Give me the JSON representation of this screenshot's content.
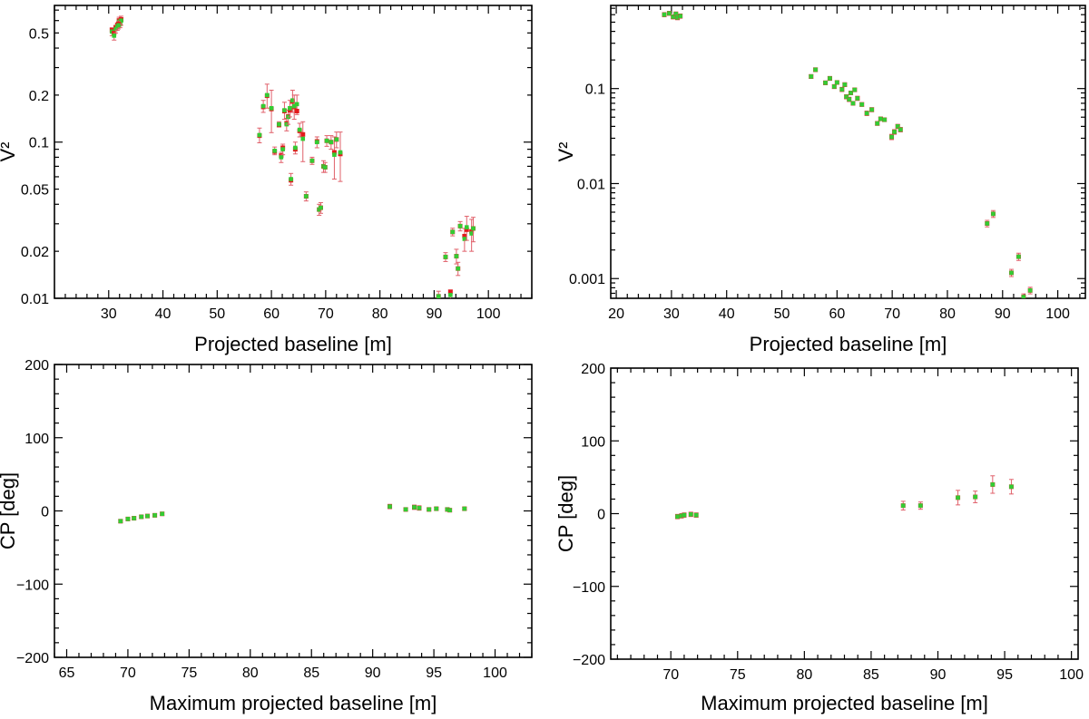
{
  "chart_data": [
    {
      "id": "p1",
      "type": "scatter",
      "xlabel": "Projected baseline [m]",
      "ylabel": "V²",
      "xscale": "linear",
      "yscale": "log",
      "xlim": [
        20,
        108
      ],
      "ylim": [
        0.01,
        0.75
      ],
      "xticks": [
        30,
        40,
        50,
        60,
        70,
        80,
        90,
        100
      ],
      "yticks": [
        0.01,
        0.02,
        0.05,
        0.1,
        0.2,
        0.5
      ],
      "yticklabels": [
        "0.01",
        "0.02",
        "0.05",
        "0.1",
        "0.2",
        "0.5"
      ],
      "points": [
        [
          30.6,
          0.51,
          0.03,
          0.52
        ],
        [
          31.0,
          0.48,
          0.03,
          0.5
        ],
        [
          31.3,
          0.53,
          0.03,
          0.54
        ],
        [
          31.6,
          0.55,
          0.03,
          0.56
        ],
        [
          31.9,
          0.59,
          0.04,
          0.6
        ],
        [
          32.1,
          0.57,
          0.03,
          0.58
        ],
        [
          32.3,
          0.6,
          0.04,
          0.61
        ],
        [
          31.8,
          0.56,
          0.03,
          0.57
        ],
        [
          57.8,
          0.111,
          0.012,
          0.11
        ],
        [
          58.5,
          0.17,
          0.015,
          0.168
        ],
        [
          59.2,
          0.2,
          0.035,
          0.198
        ],
        [
          60.0,
          0.165,
          0.05,
          0.163
        ],
        [
          60.6,
          0.088,
          0.005,
          0.087
        ],
        [
          61.4,
          0.13,
          0.005,
          0.129
        ],
        [
          61.8,
          0.08,
          0.006,
          0.082
        ],
        [
          62.1,
          0.09,
          0.007,
          0.092
        ],
        [
          62.4,
          0.16,
          0.02,
          0.158
        ],
        [
          62.8,
          0.13,
          0.012,
          0.132
        ],
        [
          63.1,
          0.145,
          0.015,
          0.146
        ],
        [
          63.4,
          0.165,
          0.02,
          0.16
        ],
        [
          63.6,
          0.058,
          0.005,
          0.057
        ],
        [
          63.9,
          0.185,
          0.03,
          0.182
        ],
        [
          64.2,
          0.17,
          0.03,
          0.168
        ],
        [
          64.4,
          0.092,
          0.008,
          0.09
        ],
        [
          64.7,
          0.175,
          0.025,
          0.158
        ],
        [
          65.2,
          0.12,
          0.012,
          0.118
        ],
        [
          65.8,
          0.105,
          0.03,
          0.112
        ],
        [
          66.4,
          0.045,
          0.003,
          0.045
        ],
        [
          67.5,
          0.076,
          0.004,
          0.076
        ],
        [
          68.4,
          0.1,
          0.008,
          0.101
        ],
        [
          68.8,
          0.037,
          0.003,
          0.037
        ],
        [
          69.1,
          0.038,
          0.003,
          0.038
        ],
        [
          69.6,
          0.07,
          0.006,
          0.07
        ],
        [
          69.9,
          0.069,
          0.005,
          0.069
        ],
        [
          70.2,
          0.102,
          0.008,
          0.102
        ],
        [
          71.0,
          0.1,
          0.01,
          0.1
        ],
        [
          71.6,
          0.083,
          0.025,
          0.086
        ],
        [
          72.0,
          0.104,
          0.012,
          0.104
        ],
        [
          72.7,
          0.086,
          0.03,
          0.084
        ],
        [
          90.8,
          0.0103,
          0.0008,
          0.0103
        ],
        [
          92.1,
          0.0184,
          0.0012,
          0.0184
        ],
        [
          93.0,
          0.0105,
          0.0008,
          0.011
        ],
        [
          93.4,
          0.0266,
          0.0015,
          0.0266
        ],
        [
          94.1,
          0.0186,
          0.002,
          0.0186
        ],
        [
          94.4,
          0.0155,
          0.0015,
          0.0155
        ],
        [
          94.8,
          0.029,
          0.002,
          0.029
        ],
        [
          95.6,
          0.024,
          0.004,
          0.025
        ],
        [
          96.0,
          0.0285,
          0.005,
          0.0275
        ],
        [
          96.9,
          0.026,
          0.006,
          0.0268
        ],
        [
          97.2,
          0.028,
          0.005,
          0.028
        ]
      ]
    },
    {
      "id": "p2",
      "type": "scatter",
      "xlabel": "Projected baseline [m]",
      "ylabel": "V²",
      "xscale": "linear",
      "yscale": "log",
      "xlim": [
        19,
        105
      ],
      "ylim": [
        0.00062,
        0.75
      ],
      "xticks": [
        20,
        30,
        40,
        50,
        60,
        70,
        80,
        90,
        100
      ],
      "yticks": [
        0.001,
        0.01,
        0.1
      ],
      "yticklabels": [
        "0.001",
        "0.01",
        "0.1"
      ],
      "points": [
        [
          28.7,
          0.6,
          0.03,
          0.6
        ],
        [
          29.6,
          0.62,
          0.03,
          0.62
        ],
        [
          30.3,
          0.57,
          0.03,
          0.57
        ],
        [
          30.8,
          0.61,
          0.03,
          0.61
        ],
        [
          31.1,
          0.56,
          0.03,
          0.56
        ],
        [
          31.6,
          0.58,
          0.03,
          0.58
        ],
        [
          55.3,
          0.134,
          0.006,
          0.134
        ],
        [
          56.1,
          0.158,
          0.007,
          0.158
        ],
        [
          57.9,
          0.115,
          0.005,
          0.115
        ],
        [
          58.7,
          0.128,
          0.006,
          0.128
        ],
        [
          59.5,
          0.105,
          0.005,
          0.105
        ],
        [
          60.0,
          0.116,
          0.005,
          0.116
        ],
        [
          60.9,
          0.098,
          0.005,
          0.098
        ],
        [
          61.4,
          0.11,
          0.005,
          0.11
        ],
        [
          61.7,
          0.082,
          0.004,
          0.082
        ],
        [
          62.2,
          0.077,
          0.004,
          0.077
        ],
        [
          62.5,
          0.09,
          0.004,
          0.09
        ],
        [
          62.9,
          0.07,
          0.003,
          0.07
        ],
        [
          63.2,
          0.097,
          0.004,
          0.097
        ],
        [
          63.7,
          0.079,
          0.004,
          0.079
        ],
        [
          64.5,
          0.068,
          0.003,
          0.068
        ],
        [
          65.4,
          0.055,
          0.003,
          0.055
        ],
        [
          66.3,
          0.06,
          0.003,
          0.06
        ],
        [
          67.3,
          0.043,
          0.002,
          0.043
        ],
        [
          67.9,
          0.048,
          0.002,
          0.048
        ],
        [
          68.6,
          0.047,
          0.002,
          0.047
        ],
        [
          69.9,
          0.031,
          0.002,
          0.031
        ],
        [
          70.4,
          0.035,
          0.002,
          0.035
        ],
        [
          71.0,
          0.04,
          0.002,
          0.04
        ],
        [
          71.5,
          0.037,
          0.002,
          0.037
        ],
        [
          87.2,
          0.0038,
          0.0003,
          0.0038
        ],
        [
          88.3,
          0.0048,
          0.0004,
          0.0048
        ],
        [
          91.6,
          0.00115,
          0.0001,
          0.00115
        ],
        [
          92.9,
          0.0017,
          0.00015,
          0.0017
        ],
        [
          93.8,
          0.00064,
          5e-05,
          0.00064
        ],
        [
          95.0,
          0.00075,
          6e-05,
          0.00075
        ]
      ]
    },
    {
      "id": "p3",
      "type": "scatter",
      "xlabel": "Maximum projected baseline [m]",
      "ylabel": "CP [deg]",
      "xscale": "linear",
      "yscale": "linear",
      "xlim": [
        64,
        103
      ],
      "ylim": [
        -200,
        200
      ],
      "xticks": [
        65,
        70,
        75,
        80,
        85,
        90,
        95,
        100
      ],
      "yticks": [
        -200,
        -100,
        0,
        100,
        200
      ],
      "yticklabels": [
        "−200",
        "−100",
        "0",
        "100",
        "200"
      ],
      "points": [
        [
          69.4,
          -14,
          2,
          -14
        ],
        [
          70.0,
          -11,
          2,
          -11
        ],
        [
          70.5,
          -10,
          2,
          -10
        ],
        [
          71.1,
          -8,
          2,
          -8
        ],
        [
          71.6,
          -7,
          2,
          -7
        ],
        [
          72.2,
          -6,
          2,
          -6
        ],
        [
          72.8,
          -4,
          2,
          -4
        ],
        [
          91.4,
          6,
          3,
          6
        ],
        [
          92.7,
          2,
          2,
          2
        ],
        [
          93.4,
          5,
          3,
          5
        ],
        [
          93.8,
          4,
          3,
          4
        ],
        [
          94.6,
          2,
          2,
          2
        ],
        [
          95.2,
          3,
          2,
          3
        ],
        [
          96.1,
          2,
          2,
          2
        ],
        [
          96.3,
          1,
          2,
          1
        ],
        [
          97.5,
          3,
          2,
          3
        ]
      ]
    },
    {
      "id": "p4",
      "type": "scatter",
      "xlabel": "Maximum projected baseline [m]",
      "ylabel": "CP [deg]",
      "xscale": "linear",
      "yscale": "linear",
      "xlim": [
        65.5,
        100.5
      ],
      "ylim": [
        -200,
        200
      ],
      "xticks": [
        70,
        75,
        80,
        85,
        90,
        95,
        100
      ],
      "yticks": [
        -200,
        -100,
        0,
        100,
        200
      ],
      "yticklabels": [
        "−200",
        "−100",
        "0",
        "100",
        "200"
      ],
      "points": [
        [
          70.5,
          -4,
          3,
          -4
        ],
        [
          70.8,
          -3,
          3,
          -3
        ],
        [
          71.0,
          -2,
          3,
          -2
        ],
        [
          71.5,
          -1,
          3,
          -1
        ],
        [
          71.9,
          -2,
          3,
          -2
        ],
        [
          87.4,
          11,
          6,
          11
        ],
        [
          88.7,
          11,
          5,
          11
        ],
        [
          91.5,
          22,
          10,
          22
        ],
        [
          92.8,
          23,
          8,
          23
        ],
        [
          94.1,
          40,
          12,
          40
        ],
        [
          95.5,
          37,
          10,
          37
        ]
      ]
    }
  ]
}
